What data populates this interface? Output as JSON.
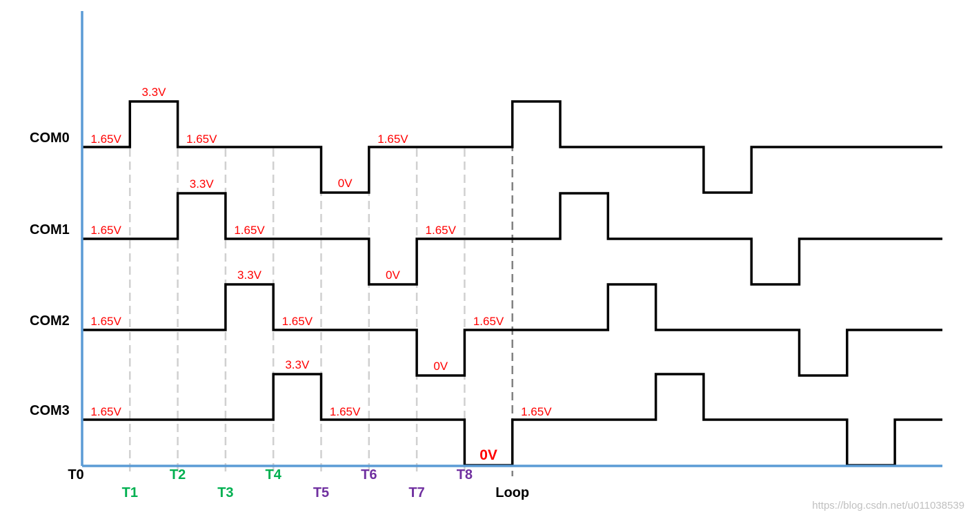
{
  "colors": {
    "axis": "#5b9bd5",
    "wave": "#000000",
    "voltage_label": "#ff0000",
    "time_black": "#000000",
    "time_green": "#00b050",
    "time_purple": "#7030a0",
    "guide": "#d0d0d0",
    "loop_guide": "#808080",
    "watermark": "#c0c0c0"
  },
  "channels": [
    {
      "name": "COM0",
      "levels": [
        1.65,
        3.3,
        1.65,
        1.65,
        1.65,
        0,
        1.65,
        1.65,
        1.65,
        3.3,
        1.65,
        1.65,
        1.65,
        0,
        1.65,
        1.65,
        1.65,
        1.65
      ],
      "labels": [
        {
          "text": "1.65V",
          "slot": 0
        },
        {
          "text": "3.3V",
          "slot": 1
        },
        {
          "text": "1.65V",
          "slot": 2
        },
        {
          "text": "0V",
          "slot": 5
        },
        {
          "text": "1.65V",
          "slot": 6
        }
      ]
    },
    {
      "name": "COM1",
      "levels": [
        1.65,
        1.65,
        3.3,
        1.65,
        1.65,
        1.65,
        0,
        1.65,
        1.65,
        1.65,
        3.3,
        1.65,
        1.65,
        1.65,
        0,
        1.65,
        1.65,
        1.65
      ],
      "labels": [
        {
          "text": "1.65V",
          "slot": 0
        },
        {
          "text": "3.3V",
          "slot": 2
        },
        {
          "text": "1.65V",
          "slot": 3
        },
        {
          "text": "0V",
          "slot": 6
        },
        {
          "text": "1.65V",
          "slot": 7
        }
      ]
    },
    {
      "name": "COM2",
      "levels": [
        1.65,
        1.65,
        1.65,
        3.3,
        1.65,
        1.65,
        1.65,
        0,
        1.65,
        1.65,
        1.65,
        3.3,
        1.65,
        1.65,
        1.65,
        0,
        1.65,
        1.65
      ],
      "labels": [
        {
          "text": "1.65V",
          "slot": 0
        },
        {
          "text": "3.3V",
          "slot": 3
        },
        {
          "text": "1.65V",
          "slot": 4
        },
        {
          "text": "0V",
          "slot": 7
        },
        {
          "text": "1.65V",
          "slot": 8
        }
      ]
    },
    {
      "name": "COM3",
      "levels": [
        1.65,
        1.65,
        1.65,
        1.65,
        3.3,
        1.65,
        1.65,
        1.65,
        0,
        1.65,
        1.65,
        1.65,
        3.3,
        1.65,
        1.65,
        1.65,
        0,
        1.65
      ],
      "labels": [
        {
          "text": "1.65V",
          "slot": 0
        },
        {
          "text": "3.3V",
          "slot": 4
        },
        {
          "text": "1.65V",
          "slot": 5
        },
        {
          "text": "0V",
          "slot": 8,
          "emphasis": true
        },
        {
          "text": "1.65V",
          "slot": 9
        }
      ]
    }
  ],
  "time_markers": [
    {
      "label": "T0",
      "index": 0,
      "row": 1,
      "color": "#000000",
      "guide": false
    },
    {
      "label": "T1",
      "index": 1,
      "row": 2,
      "color": "#00b050",
      "guide": true
    },
    {
      "label": "T2",
      "index": 2,
      "row": 1,
      "color": "#00b050",
      "guide": true
    },
    {
      "label": "T3",
      "index": 3,
      "row": 2,
      "color": "#00b050",
      "guide": true
    },
    {
      "label": "T4",
      "index": 4,
      "row": 1,
      "color": "#00b050",
      "guide": true
    },
    {
      "label": "T5",
      "index": 5,
      "row": 2,
      "color": "#7030a0",
      "guide": true
    },
    {
      "label": "T6",
      "index": 6,
      "row": 1,
      "color": "#7030a0",
      "guide": true
    },
    {
      "label": "T7",
      "index": 7,
      "row": 2,
      "color": "#7030a0",
      "guide": true
    },
    {
      "label": "T8",
      "index": 8,
      "row": 1,
      "color": "#7030a0",
      "guide": true
    },
    {
      "label": "Loop",
      "index": 9,
      "row": 2,
      "color": "#000000",
      "guide": true,
      "loop": true
    }
  ],
  "watermark": "https://blog.csdn.net/u011038539"
}
